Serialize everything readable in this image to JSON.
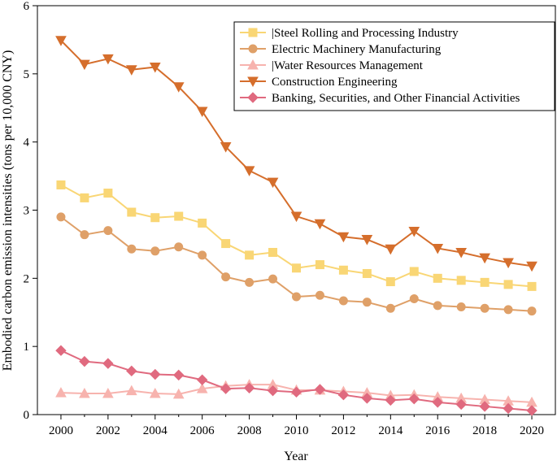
{
  "chart_data": {
    "type": "line",
    "title": "",
    "xlabel": "Year",
    "ylabel": "Embodied carbon emission intensities (tons per 10,000 CNY)",
    "xlim": [
      1999,
      2021
    ],
    "ylim": [
      0,
      6
    ],
    "xticks": [
      "2000",
      "2002",
      "2004",
      "2006",
      "2008",
      "2010",
      "2012",
      "2014",
      "2016",
      "2018",
      "2020"
    ],
    "yticks": [
      "0",
      "1",
      "2",
      "3",
      "4",
      "5",
      "6"
    ],
    "legend_position": "top-right",
    "x": [
      2000,
      2001,
      2002,
      2003,
      2004,
      2005,
      2006,
      2007,
      2008,
      2009,
      2010,
      2011,
      2012,
      2013,
      2014,
      2015,
      2016,
      2017,
      2018,
      2019,
      2020
    ],
    "series": [
      {
        "name": "|Steel Rolling and Processing Industry",
        "color": "#f9d675",
        "marker": "square",
        "values": [
          3.37,
          3.18,
          3.25,
          2.97,
          2.89,
          2.91,
          2.81,
          2.51,
          2.34,
          2.38,
          2.15,
          2.2,
          2.12,
          2.07,
          1.95,
          2.1,
          2.0,
          1.97,
          1.94,
          1.91,
          1.88
        ]
      },
      {
        "name": "Electric Machinery Manufacturing",
        "color": "#dfa068",
        "marker": "circle",
        "values": [
          2.9,
          2.64,
          2.7,
          2.43,
          2.4,
          2.46,
          2.34,
          2.02,
          1.94,
          1.99,
          1.73,
          1.75,
          1.67,
          1.65,
          1.56,
          1.7,
          1.6,
          1.58,
          1.56,
          1.54,
          1.52
        ]
      },
      {
        "name": "|Water Resources Management",
        "color": "#f7b3ae",
        "marker": "triangle-up",
        "values": [
          0.32,
          0.31,
          0.31,
          0.35,
          0.31,
          0.3,
          0.38,
          0.42,
          0.44,
          0.44,
          0.36,
          0.36,
          0.34,
          0.32,
          0.28,
          0.29,
          0.26,
          0.24,
          0.22,
          0.2,
          0.18
        ]
      },
      {
        "name": "Construction Engineering",
        "color": "#d56e2c",
        "marker": "triangle-down",
        "values": [
          5.49,
          5.14,
          5.22,
          5.06,
          5.1,
          4.81,
          4.45,
          3.93,
          3.58,
          3.41,
          2.91,
          2.8,
          2.61,
          2.57,
          2.43,
          2.69,
          2.44,
          2.38,
          2.3,
          2.23,
          2.18
        ]
      },
      {
        "name": "Banking, Securities, and Other Financial Activities",
        "color": "#e06a7f",
        "marker": "diamond",
        "values": [
          0.94,
          0.78,
          0.75,
          0.64,
          0.59,
          0.58,
          0.51,
          0.38,
          0.39,
          0.35,
          0.33,
          0.37,
          0.29,
          0.24,
          0.21,
          0.23,
          0.18,
          0.15,
          0.12,
          0.09,
          0.06
        ]
      }
    ]
  }
}
